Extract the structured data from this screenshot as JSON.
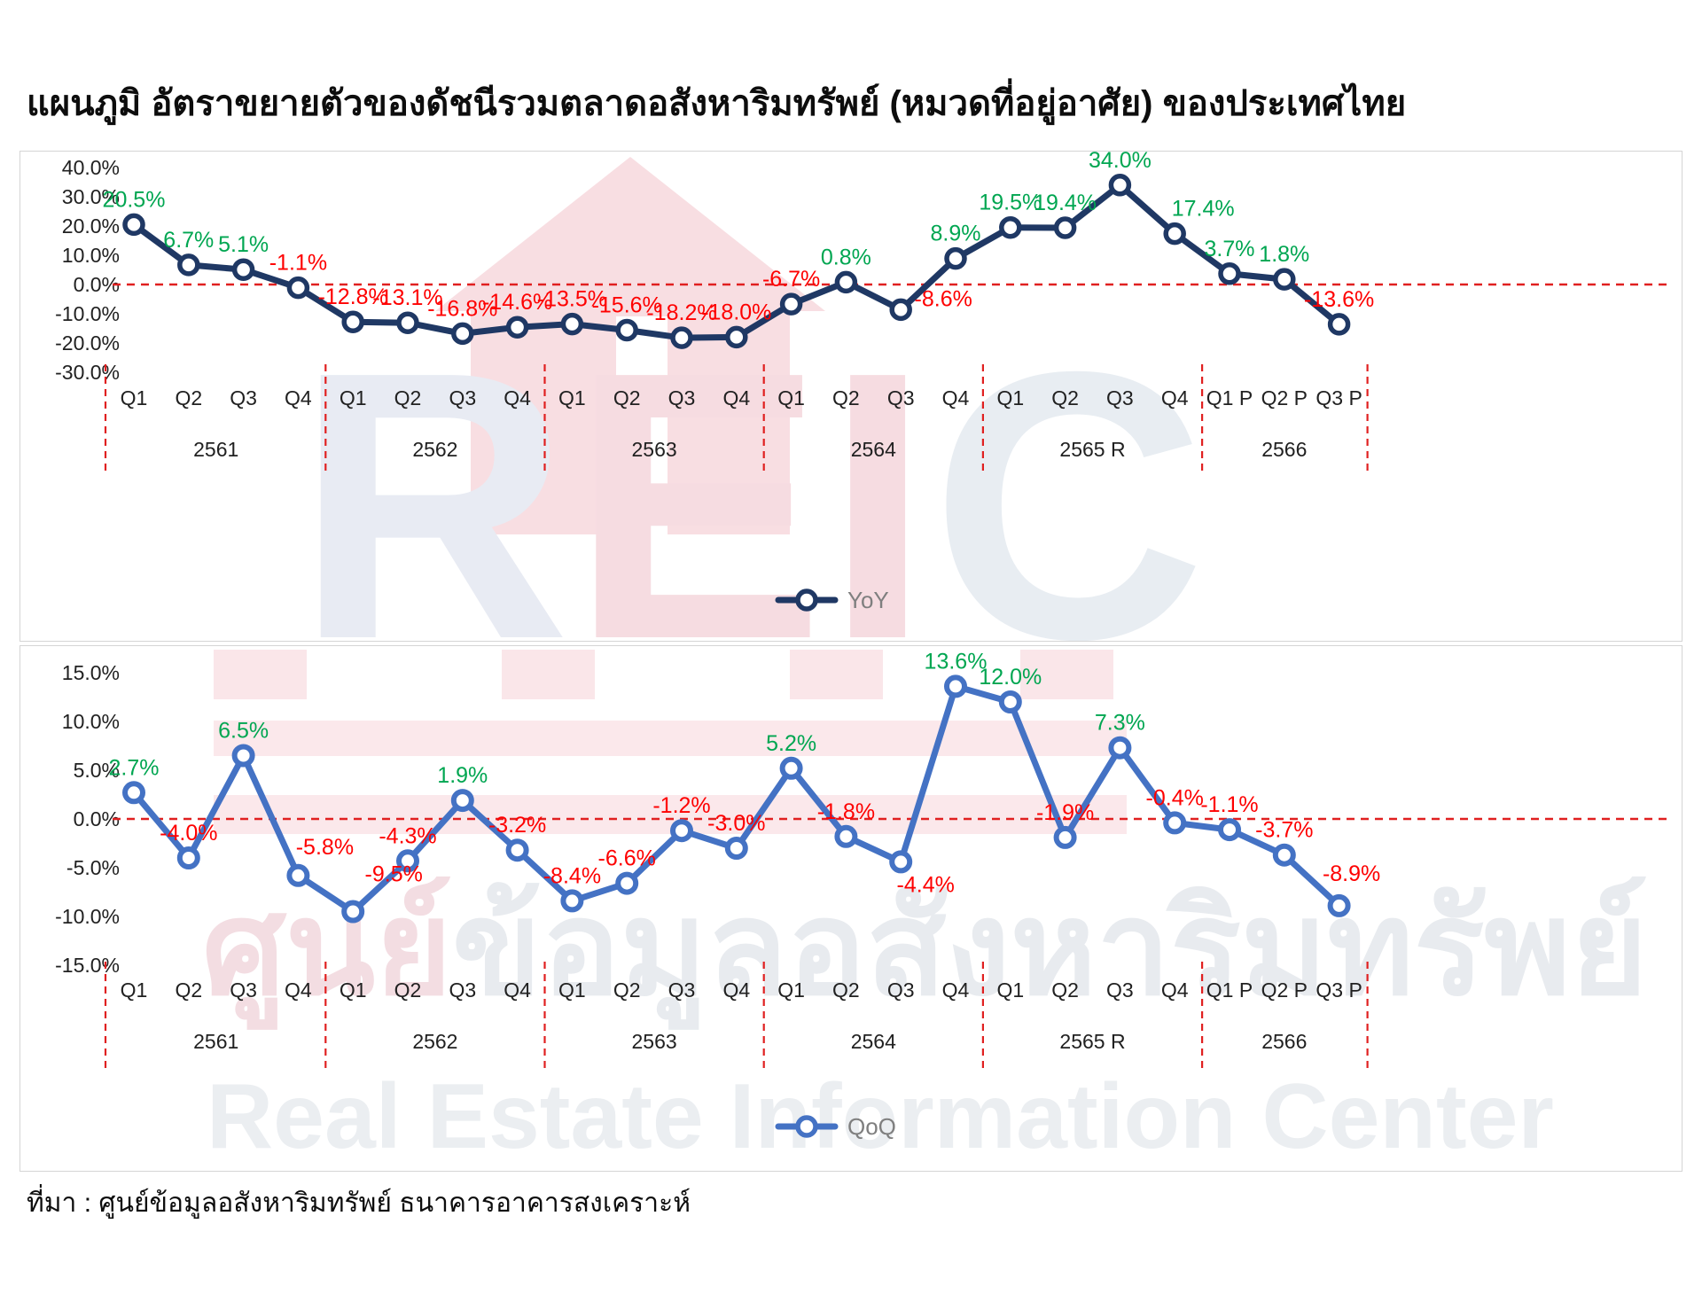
{
  "page": {
    "title": "แผนภูมิ อัตราขยายตัวของดัชนีรวมตลาดอสังหาริมทรัพย์ (หมวดที่อยู่อาศัย) ของประเทศไทย",
    "source": "ที่มา : ศูนย์ข้อมูลอสังหาริมทรัพย์ ธนาคารอาคารสงเคราะห์"
  },
  "watermark": {
    "letters": "REIC",
    "thai": "ศูนย์ข้อมูลอสังหาริมทรัพย์",
    "english": "Real Estate Information Center"
  },
  "colors": {
    "yoy_line": "#1f3864",
    "qoq_line": "#4472c4",
    "positive_label": "#00a651",
    "negative_label": "#fe0000",
    "zero_line": "#e02020",
    "separator": "#e02020",
    "axis_text": "#212121",
    "legend_text": "#7f7f7f"
  },
  "chart_data": [
    {
      "type": "line",
      "name": "YoY",
      "legend": "YoY",
      "ylim": [
        -30,
        40
      ],
      "y_tick_values": [
        40,
        30,
        20,
        10,
        0,
        -10,
        -20,
        -30
      ],
      "y_tick_labels": [
        "40.0%",
        "30.0%",
        "20.0%",
        "10.0%",
        "0.0%",
        "-10.0%",
        "-20.0%",
        "-30.0%"
      ],
      "categories": [
        "Q1",
        "Q2",
        "Q3",
        "Q4",
        "Q1",
        "Q2",
        "Q3",
        "Q4",
        "Q1",
        "Q2",
        "Q3",
        "Q4",
        "Q1",
        "Q2",
        "Q3",
        "Q4",
        "Q1",
        "Q2",
        "Q3",
        "Q4",
        "Q1 P",
        "Q2 P",
        "Q3 P"
      ],
      "year_groups": [
        {
          "label": "2561",
          "count": 4
        },
        {
          "label": "2562",
          "count": 4
        },
        {
          "label": "2563",
          "count": 4
        },
        {
          "label": "2564",
          "count": 4
        },
        {
          "label": "2565 R",
          "count": 4
        },
        {
          "label": "2566",
          "count": 3
        }
      ],
      "values": [
        20.5,
        6.7,
        5.1,
        -1.1,
        -12.8,
        -13.1,
        -16.8,
        -14.6,
        -13.5,
        -15.6,
        -18.2,
        -18.0,
        -6.7,
        0.8,
        -8.6,
        8.9,
        19.5,
        19.4,
        34.0,
        17.4,
        3.7,
        1.8,
        -13.6
      ],
      "value_labels": [
        "20.5%",
        "6.7%",
        "5.1%",
        "-1.1%",
        "-12.8%",
        "-13.1%",
        "-16.8%",
        "-14.6%",
        "-13.5%",
        "-15.6%",
        "-18.2%",
        "-18.0%",
        "-6.7%",
        "0.8%",
        "-8.6%",
        "8.9%",
        "19.5%",
        "19.4%",
        "34.0%",
        "17.4%",
        "3.7%",
        "1.8%",
        "-13.6%"
      ],
      "grid": false,
      "legend_position": "bottom-center",
      "zero_line": true
    },
    {
      "type": "line",
      "name": "QoQ",
      "legend": "QoQ",
      "ylim": [
        -15,
        15
      ],
      "y_tick_values": [
        15,
        10,
        5,
        0,
        -5,
        -10,
        -15
      ],
      "y_tick_labels": [
        "15.0%",
        "10.0%",
        "5.0%",
        "0.0%",
        "-5.0%",
        "-10.0%",
        "-15.0%"
      ],
      "categories": [
        "Q1",
        "Q2",
        "Q3",
        "Q4",
        "Q1",
        "Q2",
        "Q3",
        "Q4",
        "Q1",
        "Q2",
        "Q3",
        "Q4",
        "Q1",
        "Q2",
        "Q3",
        "Q4",
        "Q1",
        "Q2",
        "Q3",
        "Q4",
        "Q1 P",
        "Q2 P",
        "Q3 P"
      ],
      "year_groups": [
        {
          "label": "2561",
          "count": 4
        },
        {
          "label": "2562",
          "count": 4
        },
        {
          "label": "2563",
          "count": 4
        },
        {
          "label": "2564",
          "count": 4
        },
        {
          "label": "2565 R",
          "count": 4
        },
        {
          "label": "2566",
          "count": 3
        }
      ],
      "values": [
        2.7,
        -4.0,
        6.5,
        -5.8,
        -9.5,
        -4.3,
        1.9,
        -3.2,
        -8.4,
        -6.6,
        -1.2,
        -3.0,
        5.2,
        -1.8,
        -4.4,
        13.6,
        12.0,
        -1.9,
        7.3,
        -0.4,
        -1.1,
        -3.7,
        -8.9
      ],
      "value_labels": [
        "2.7%",
        "-4.0%",
        "6.5%",
        "-5.8%",
        "-9.5%",
        "-4.3%",
        "1.9%",
        "-3.2%",
        "-8.4%",
        "-6.6%",
        "-1.2%",
        "-3.0%",
        "5.2%",
        "-1.8%",
        "-4.4%",
        "13.6%",
        "12.0%",
        "-1.9%",
        "7.3%",
        "-0.4%",
        "-1.1%",
        "-3.7%",
        "-8.9%"
      ],
      "grid": false,
      "legend_position": "bottom-center",
      "zero_line": true
    }
  ]
}
